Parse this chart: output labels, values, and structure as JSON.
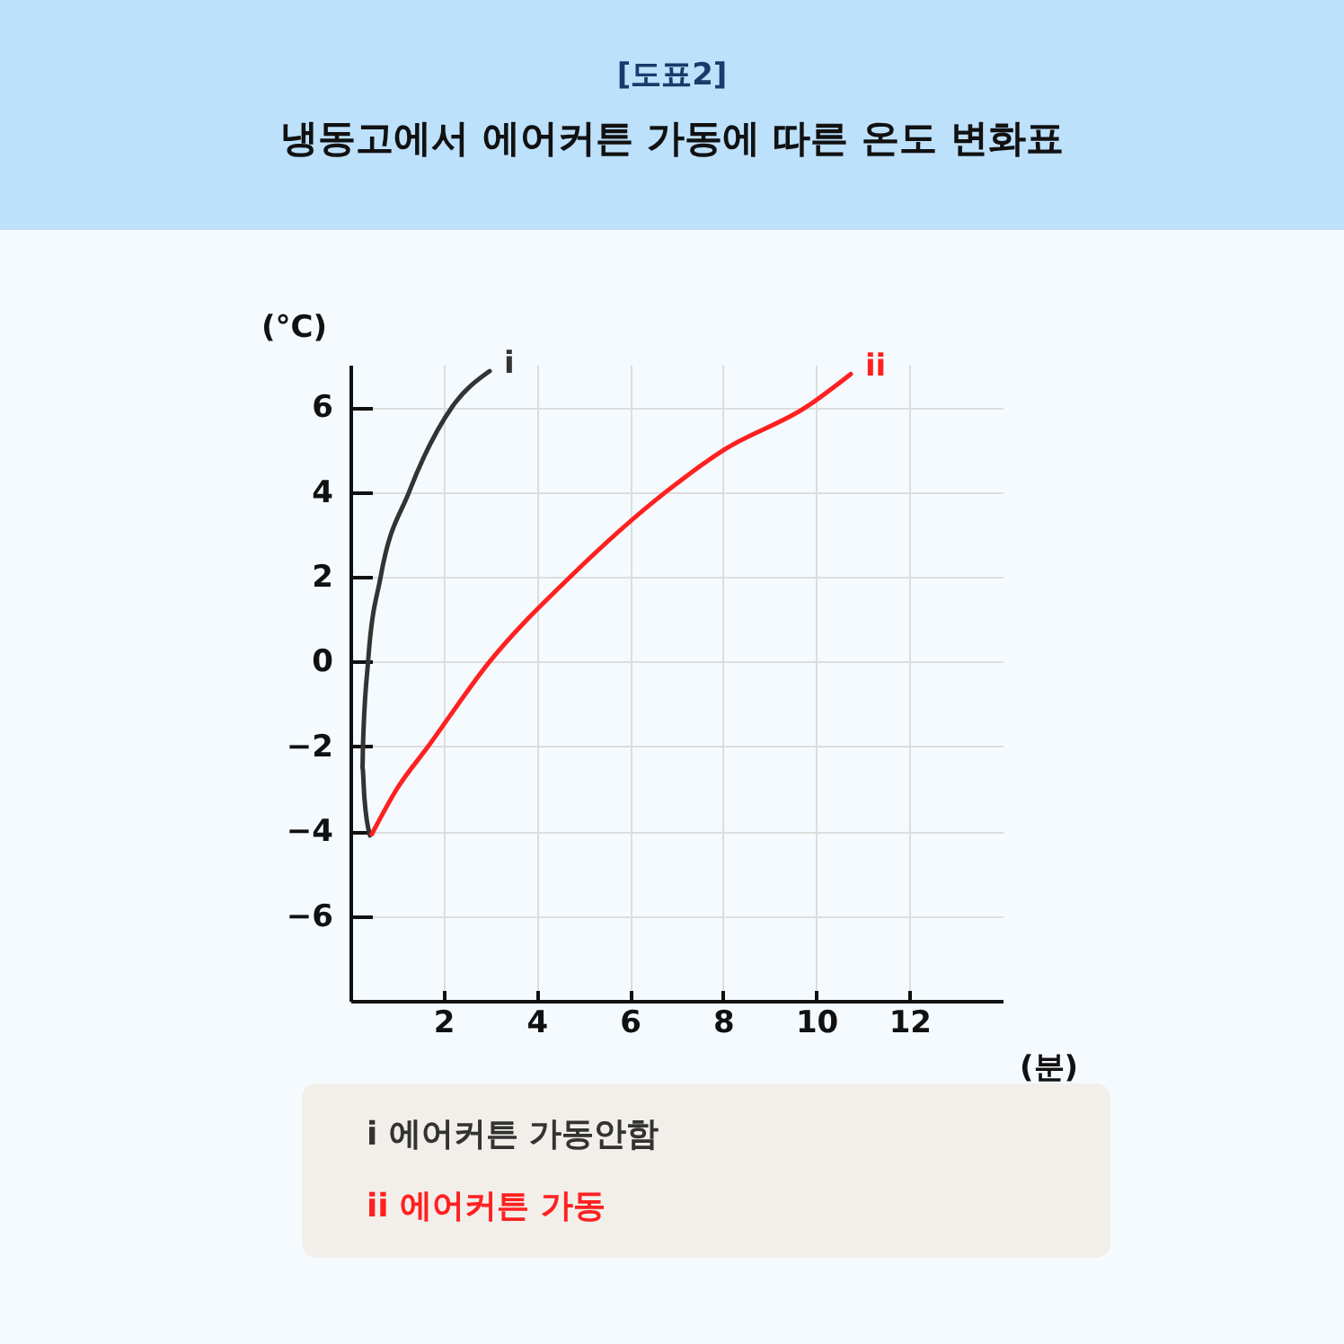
{
  "chart_data": {
    "type": "line",
    "subtitle": "[도표2]",
    "title": "냉동고에서 에어커튼 가동에 따른 온도 변화표",
    "xlabel": "(분)",
    "ylabel": "(°C)",
    "series": [
      {
        "name": "i",
        "color": "#333333",
        "x": [
          0.42,
          0.3,
          0.26,
          0.27,
          0.38,
          0.65,
          1.26,
          2.18,
          2.99
        ],
        "values": [
          -4.1,
          -3.2,
          -2.5,
          -2,
          0,
          2,
          4,
          6,
          6.85
        ]
      },
      {
        "name": "ii",
        "color": "#ff2020",
        "x": [
          0.46,
          1.0,
          1.67,
          2.99,
          4.72,
          6.77,
          8.03,
          9.78,
          10.74
        ],
        "values": [
          -4.07,
          -3,
          -2,
          0,
          2,
          4,
          5,
          6,
          6.78
        ]
      }
    ],
    "xlim": [
      0,
      14
    ],
    "xticks": [
      2,
      4,
      6,
      8,
      10,
      12
    ],
    "ylim": [
      -8,
      7
    ],
    "yticks": [
      6,
      4,
      2,
      0,
      -2,
      -4,
      -6
    ],
    "grid": true,
    "annotations": [
      "i  에어커튼 가동안함",
      "ii 에어커튼 가동"
    ]
  }
}
